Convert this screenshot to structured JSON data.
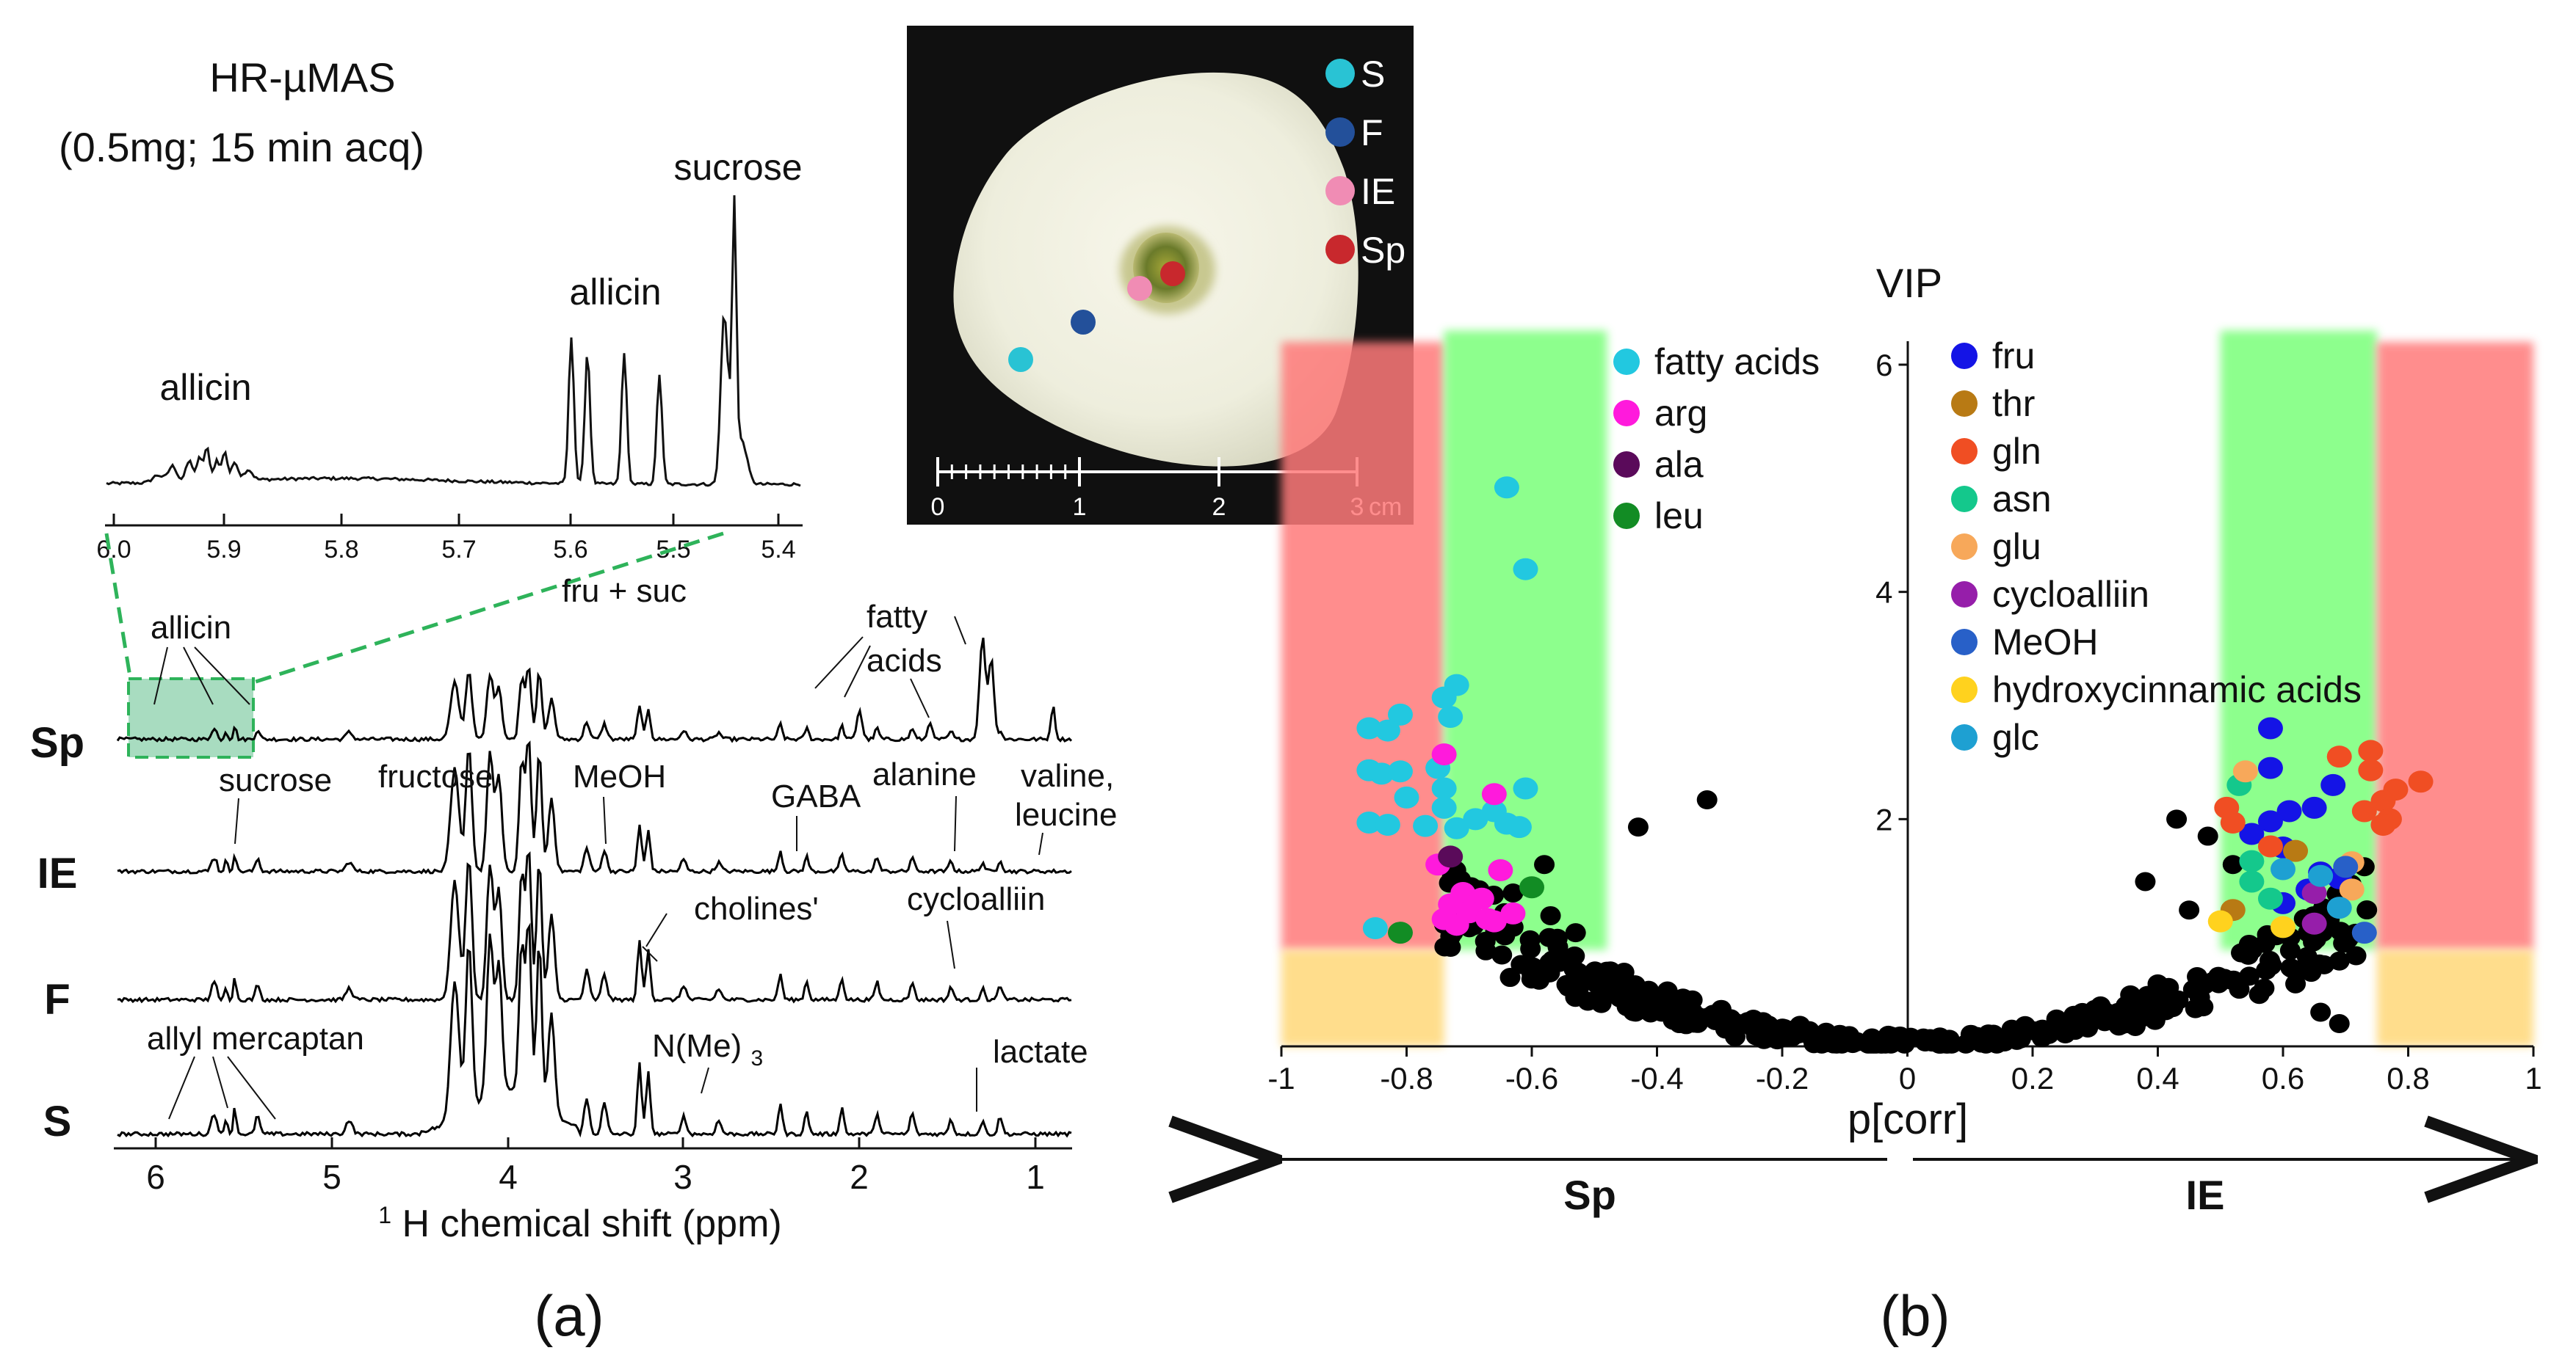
{
  "panel_a": {
    "caption": "(a)",
    "method_title": "HR-µMAS",
    "method_subtitle": "(0.5mg; 15 min acq)",
    "inset": {
      "xticks": [
        "6.0",
        "5.9",
        "5.8",
        "5.7",
        "5.6",
        "5.5",
        "5.4"
      ],
      "labels": {
        "allicin_left": "allicin",
        "allicin_right": "allicin",
        "sucrose": "sucrose"
      }
    },
    "spectra": {
      "traces": [
        {
          "label": "Sp",
          "color": "#000000"
        },
        {
          "label": "IE",
          "color": "#000000"
        },
        {
          "label": "F",
          "color": "#000000"
        },
        {
          "label": "S",
          "color": "#000000"
        }
      ],
      "xticks": [
        "6",
        "5",
        "4",
        "3",
        "2",
        "1"
      ],
      "xlabel_sup": "1",
      "xlabel": "H chemical shift (ppm)",
      "annotations": {
        "allicin": "allicin",
        "fru_suc": "fru + suc",
        "fatty1": "fatty",
        "fatty2": "acids",
        "sucrose": "sucrose",
        "fructose": "fructose",
        "meoh": "MeOH",
        "gaba": "GABA",
        "alanine": "alanine",
        "valine1": "valine,",
        "valine2": "leucine",
        "cholines": "cholines'",
        "cycloalliin": "cycloalliin",
        "allyl": "allyl mercaptan",
        "nme3_a": "N(Me)",
        "nme3_sub": "3",
        "lactate": "lactate"
      }
    },
    "photo": {
      "legend": [
        {
          "label": "S",
          "color": "#29c3d4"
        },
        {
          "label": "F",
          "color": "#23509a"
        },
        {
          "label": "IE",
          "color": "#f08cb4"
        },
        {
          "label": "Sp",
          "color": "#c8282d"
        }
      ],
      "scale_labels": [
        "0",
        "1",
        "2",
        "3",
        "cm"
      ]
    }
  },
  "panel_b": {
    "caption": "(b)",
    "arrow_left_label": "Sp",
    "arrow_right_label": "IE",
    "left_legend": [
      {
        "label": "fatty acids",
        "color": "#22c8e0"
      },
      {
        "label": "arg",
        "color": "#ff1adc"
      },
      {
        "label": "ala",
        "color": "#5a0a5a"
      },
      {
        "label": "leu",
        "color": "#128c24"
      }
    ],
    "right_legend": [
      {
        "label": "fru",
        "color": "#1414e6"
      },
      {
        "label": "thr",
        "color": "#b87a14"
      },
      {
        "label": "gln",
        "color": "#f04e23"
      },
      {
        "label": "asn",
        "color": "#14c88c"
      },
      {
        "label": "glu",
        "color": "#f7a85a"
      },
      {
        "label": "cycloalliin",
        "color": "#961eaa"
      },
      {
        "label": "MeOH",
        "color": "#2860c8"
      },
      {
        "label": "hydroxycinnamic acids",
        "color": "#ffd21e"
      },
      {
        "label": "glc",
        "color": "#1ea0d2"
      }
    ]
  },
  "chart_data": {
    "type": "scatter",
    "title": "",
    "xlabel": "p[corr]",
    "ylabel": "VIP",
    "xlim": [
      -1,
      1
    ],
    "ylim": [
      0,
      6.2
    ],
    "xticks": [
      -1,
      -0.8,
      -0.6,
      -0.4,
      -0.2,
      0,
      0.2,
      0.4,
      0.6,
      0.8,
      1
    ],
    "xtick_labels": [
      "-1",
      "-0.8",
      "-0.6",
      "-0.4",
      "-0.2",
      "0",
      "0.2",
      "0.4",
      "0.6",
      "0.8",
      "1"
    ],
    "yticks": [
      2,
      4,
      6
    ],
    "ytick_labels": [
      "2",
      "4",
      "6"
    ],
    "bands": [
      {
        "x0": -1,
        "x1": -0.74,
        "y0": 0.85,
        "y1": 6.2,
        "color": "#ff7a7a"
      },
      {
        "x0": -0.74,
        "x1": -0.48,
        "y0": 0.85,
        "y1": 6.3,
        "color": "#7aff7a"
      },
      {
        "x0": -1,
        "x1": -0.74,
        "y0": 0,
        "y1": 0.85,
        "color": "#ffd878"
      },
      {
        "x0": 0.5,
        "x1": 0.75,
        "y0": 0.85,
        "y1": 6.3,
        "color": "#7aff7a"
      },
      {
        "x0": 0.75,
        "x1": 1,
        "y0": 0.85,
        "y1": 6.2,
        "color": "#ff7a7a"
      },
      {
        "x0": 0.75,
        "x1": 1,
        "y0": 0,
        "y1": 0.85,
        "color": "#ffd878"
      }
    ],
    "series": [
      {
        "name": "fatty acids",
        "color": "#22c8e0",
        "points": [
          [
            -0.64,
            4.92
          ],
          [
            -0.61,
            4.2
          ],
          [
            -0.72,
            3.18
          ],
          [
            -0.74,
            3.07
          ],
          [
            -0.81,
            2.92
          ],
          [
            -0.73,
            2.9
          ],
          [
            -0.86,
            2.8
          ],
          [
            -0.83,
            2.78
          ],
          [
            -0.86,
            2.43
          ],
          [
            -0.84,
            2.4
          ],
          [
            -0.81,
            2.42
          ],
          [
            -0.75,
            2.45
          ],
          [
            -0.74,
            2.27
          ],
          [
            -0.61,
            2.27
          ],
          [
            -0.8,
            2.19
          ],
          [
            -0.74,
            2.1
          ],
          [
            -0.66,
            2.07
          ],
          [
            -0.69,
            2.0
          ],
          [
            -0.64,
            1.96
          ],
          [
            -0.62,
            1.93
          ],
          [
            -0.86,
            1.97
          ],
          [
            -0.83,
            1.95
          ],
          [
            -0.77,
            1.94
          ],
          [
            -0.72,
            1.92
          ],
          [
            -0.85,
            1.04
          ]
        ]
      },
      {
        "name": "arg",
        "color": "#ff1adc",
        "points": [
          [
            -0.74,
            2.57
          ],
          [
            -0.66,
            2.22
          ],
          [
            -0.75,
            1.6
          ],
          [
            -0.65,
            1.55
          ],
          [
            -0.71,
            1.35
          ],
          [
            -0.68,
            1.3
          ],
          [
            -0.73,
            1.25
          ],
          [
            -0.7,
            1.18
          ],
          [
            -0.74,
            1.12
          ],
          [
            -0.67,
            1.12
          ],
          [
            -0.72,
            1.07
          ],
          [
            -0.63,
            1.17
          ],
          [
            -0.66,
            1.1
          ]
        ]
      },
      {
        "name": "ala",
        "color": "#5a0a5a",
        "points": [
          [
            -0.73,
            1.67
          ]
        ]
      },
      {
        "name": "leu",
        "color": "#128c24",
        "points": [
          [
            -0.6,
            1.4
          ],
          [
            -0.81,
            1.0
          ]
        ]
      },
      {
        "name": "fru",
        "color": "#1414e6",
        "points": [
          [
            0.58,
            2.8
          ],
          [
            0.58,
            2.45
          ],
          [
            0.68,
            2.3
          ],
          [
            0.65,
            2.1
          ],
          [
            0.61,
            2.07
          ],
          [
            0.58,
            1.98
          ],
          [
            0.55,
            1.87
          ],
          [
            0.6,
            1.75
          ],
          [
            0.66,
            1.53
          ],
          [
            0.69,
            1.48
          ],
          [
            0.64,
            1.38
          ],
          [
            0.6,
            1.26
          ]
        ]
      },
      {
        "name": "thr",
        "color": "#b87a14",
        "points": [
          [
            0.62,
            1.72
          ],
          [
            0.52,
            1.2
          ]
        ]
      },
      {
        "name": "gln",
        "color": "#f04e23",
        "points": [
          [
            0.69,
            2.55
          ],
          [
            0.74,
            2.6
          ],
          [
            0.74,
            2.43
          ],
          [
            0.78,
            2.26
          ],
          [
            0.82,
            2.33
          ],
          [
            0.76,
            2.16
          ],
          [
            0.73,
            2.07
          ],
          [
            0.77,
            2.0
          ],
          [
            0.51,
            2.1
          ],
          [
            0.52,
            1.97
          ],
          [
            0.58,
            1.76
          ],
          [
            0.76,
            1.95
          ]
        ]
      },
      {
        "name": "asn",
        "color": "#14c88c",
        "points": [
          [
            0.53,
            2.3
          ],
          [
            0.55,
            1.63
          ],
          [
            0.55,
            1.45
          ],
          [
            0.58,
            1.3
          ]
        ]
      },
      {
        "name": "glu",
        "color": "#f7a85a",
        "points": [
          [
            0.54,
            2.42
          ],
          [
            0.71,
            1.62
          ],
          [
            0.71,
            1.38
          ]
        ]
      },
      {
        "name": "cycloalliin",
        "color": "#961eaa",
        "points": [
          [
            0.65,
            1.35
          ],
          [
            0.65,
            1.08
          ]
        ]
      },
      {
        "name": "MeOH",
        "color": "#2860c8",
        "points": [
          [
            0.73,
            1.0
          ],
          [
            0.7,
            1.58
          ]
        ]
      },
      {
        "name": "hydroxycinnamic acids",
        "color": "#ffd21e",
        "points": [
          [
            0.5,
            1.1
          ],
          [
            0.6,
            1.05
          ]
        ]
      },
      {
        "name": "glc",
        "color": "#1ea0d2",
        "points": [
          [
            0.6,
            1.56
          ],
          [
            0.66,
            1.5
          ],
          [
            0.69,
            1.22
          ]
        ]
      }
    ]
  }
}
